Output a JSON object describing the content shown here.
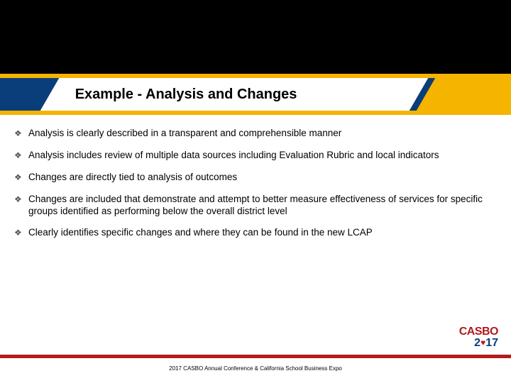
{
  "colors": {
    "black": "#000000",
    "blue": "#0a3e7a",
    "yellow": "#f5b400",
    "red": "#b31b1b",
    "white": "#ffffff",
    "bullet": "#555555"
  },
  "title": "Example - Analysis and Changes",
  "bullets": [
    "Analysis is clearly described in a transparent and comprehensible manner",
    "Analysis includes review of multiple data sources including Evaluation Rubric and local indicators",
    "Changes are directly tied to analysis of outcomes",
    "Changes are included that demonstrate and attempt to better measure effectiveness of services for specific groups identified as performing below the overall district level",
    "Clearly identifies specific changes and where they can be found in the new LCAP"
  ],
  "logo": {
    "org": "CASBO",
    "year_prefix": "2",
    "year_suffix": "17"
  },
  "footer": "2017 CASBO Annual Conference & California School Business Expo"
}
